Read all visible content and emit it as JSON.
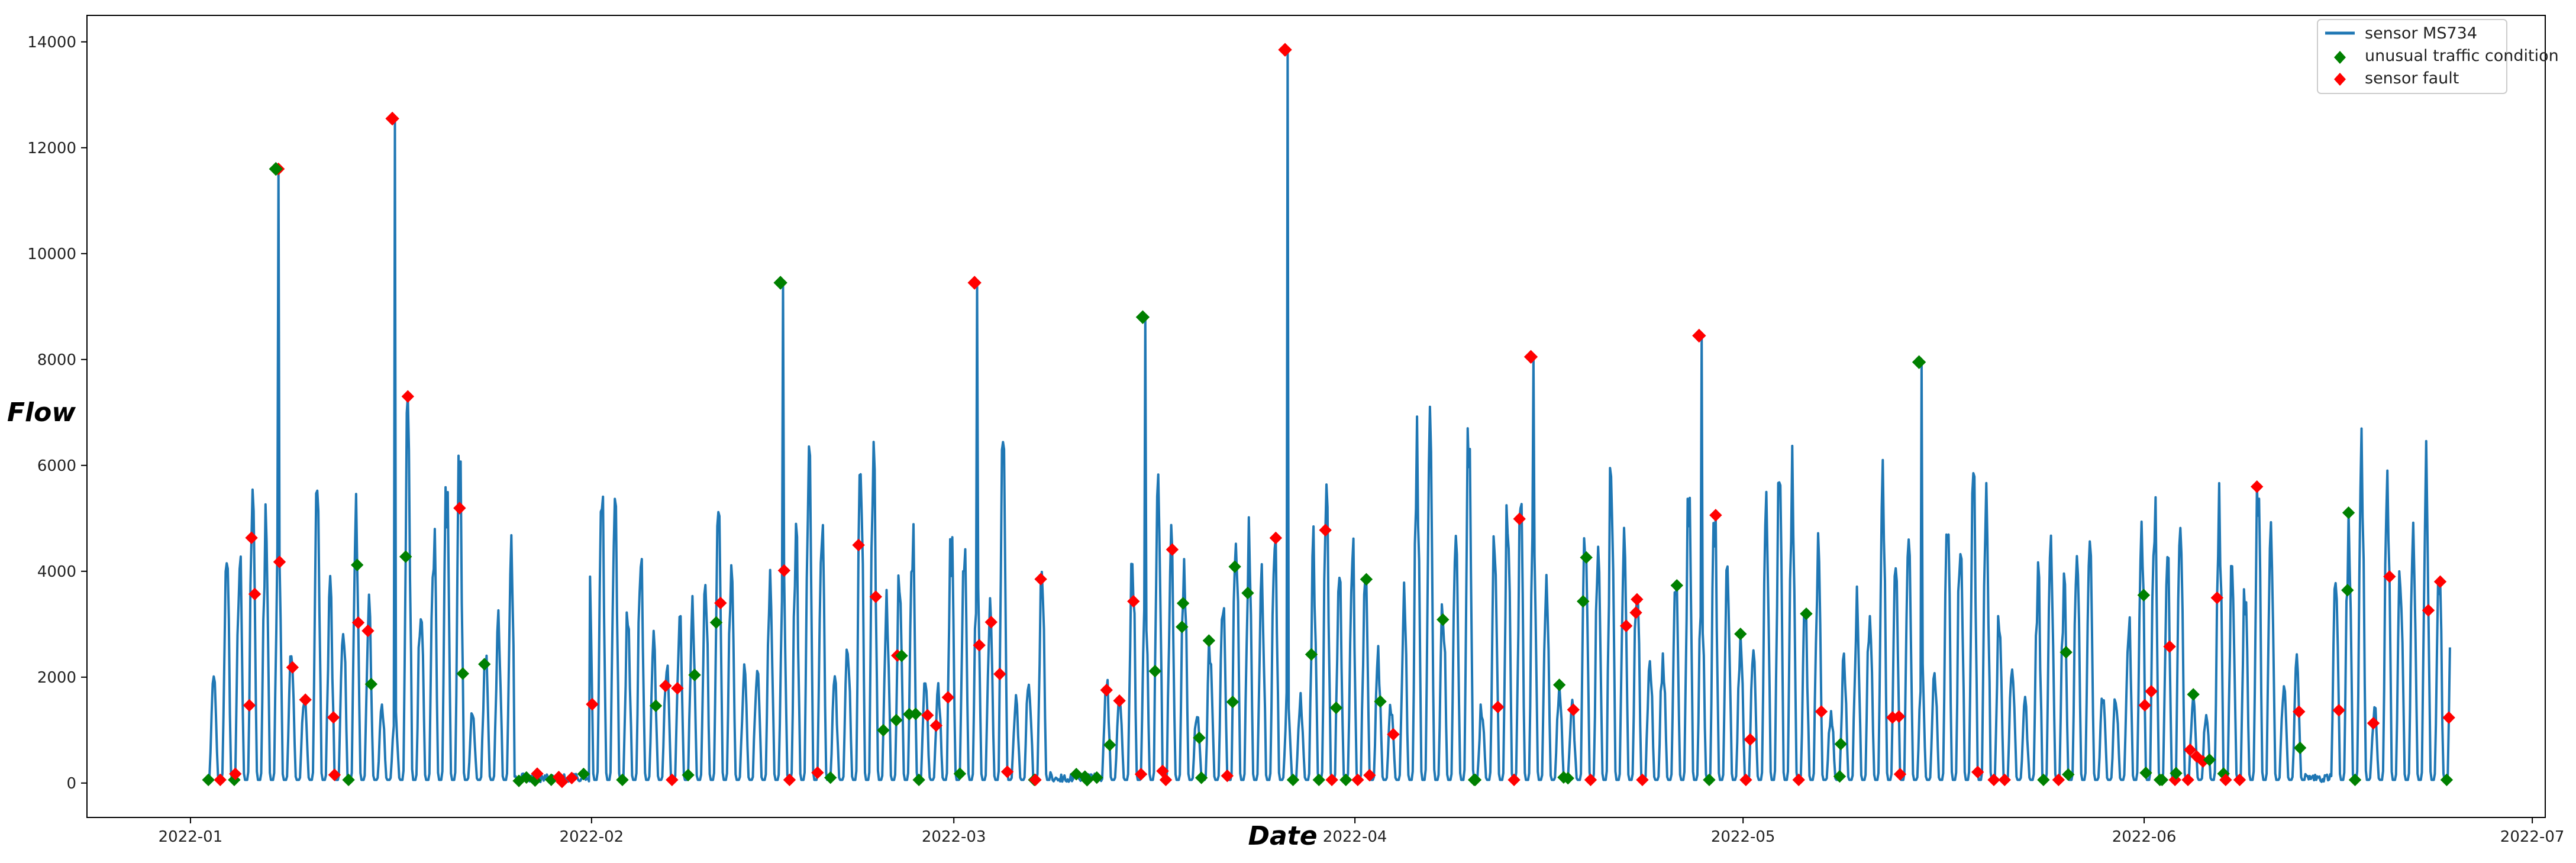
{
  "chart_data": {
    "type": "line",
    "title": "",
    "xlabel": "Date",
    "ylabel": "Flow",
    "ylim": [
      -650,
      14500
    ],
    "xlim": [
      "2021-12-24",
      "2022-07-02"
    ],
    "yticks": [
      0,
      2000,
      4000,
      6000,
      8000,
      10000,
      12000,
      14000
    ],
    "xticks": [
      {
        "date": "2022-01-01",
        "label": "2022-01"
      },
      {
        "date": "2022-02-01",
        "label": "2022-02"
      },
      {
        "date": "2022-03-01",
        "label": "2022-03"
      },
      {
        "date": "2022-04-01",
        "label": "2022-04"
      },
      {
        "date": "2022-05-01",
        "label": "2022-05"
      },
      {
        "date": "2022-06-01",
        "label": "2022-06"
      },
      {
        "date": "2022-07-01",
        "label": "2022-07"
      }
    ],
    "legend_position": "top-right",
    "series": [
      {
        "name": "sensor MS734",
        "kind": "line",
        "color": "#1f77b4",
        "x_range": [
          "2022-01-02",
          "2022-06-24"
        ],
        "pattern": "daily cycles, typical peaks 1500-6500, troughs near 0, low-flow periods late Jan and early Mar"
      },
      {
        "name": "unusual traffic condition",
        "kind": "scatter",
        "marker": "diamond",
        "color": "#008000"
      },
      {
        "name": "sensor fault",
        "kind": "scatter",
        "marker": "diamond",
        "color": "#ff0000"
      }
    ],
    "spikes": [
      {
        "date": "2022-01-07.6",
        "value": 11600,
        "anomaly": "unusual traffic condition"
      },
      {
        "date": "2022-01-16.6",
        "value": 12550,
        "anomaly": "sensor fault"
      },
      {
        "date": "2022-02-15.6",
        "value": 9450,
        "anomaly": "unusual traffic condition"
      },
      {
        "date": "2022-03-02.6",
        "value": 9450,
        "anomaly": "sensor fault"
      },
      {
        "date": "2022-03-15.6",
        "value": 8800,
        "anomaly": "unusual traffic condition"
      },
      {
        "date": "2022-03-26.6",
        "value": 13850,
        "anomaly": "sensor fault"
      },
      {
        "date": "2022-04-27.6",
        "value": 8450,
        "anomaly": "sensor fault"
      },
      {
        "date": "2022-05-14.6",
        "value": 7950,
        "anomaly": "unusual traffic condition"
      },
      {
        "date": "2022-04-14.6",
        "value": 8050,
        "anomaly": "sensor fault"
      }
    ]
  }
}
